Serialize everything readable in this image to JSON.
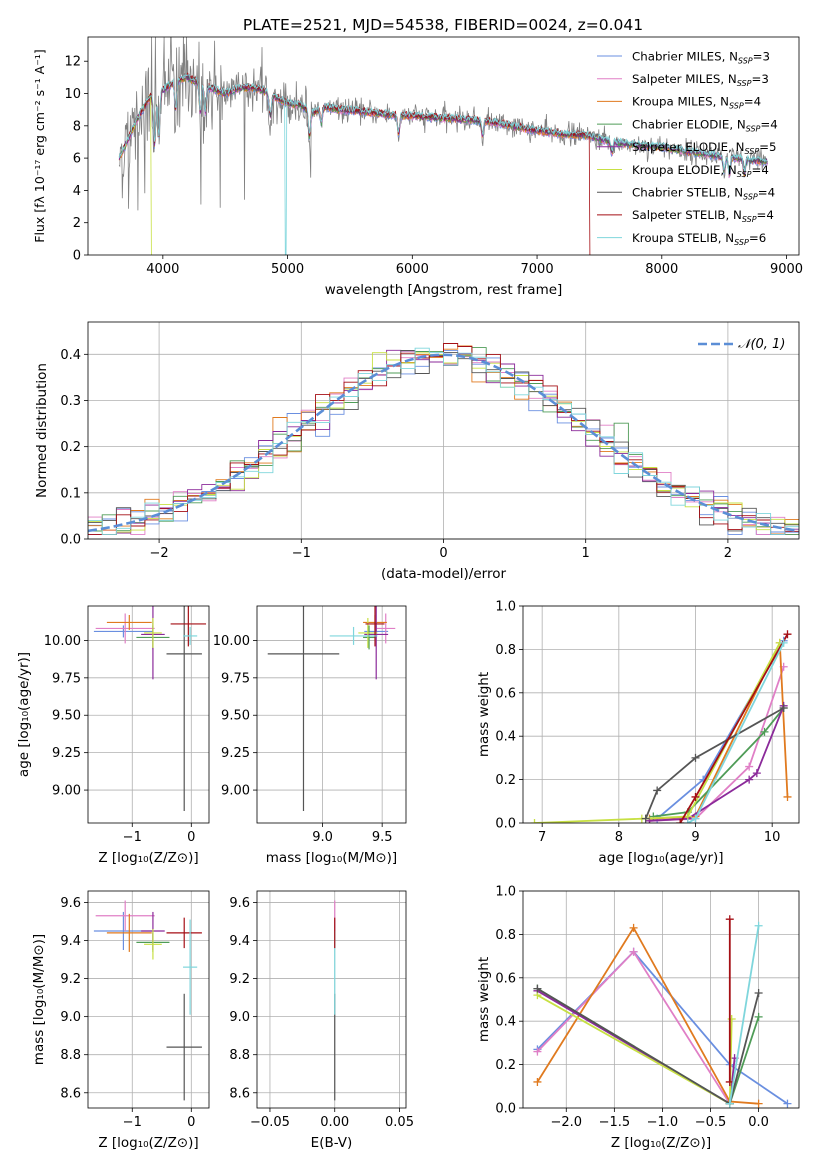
{
  "figure": {
    "title": "PLATE=2521, MJD=54538, FIBERID=0024, z=0.041"
  },
  "colors": {
    "chabrier_miles": "#6a8fe0",
    "salpeter_miles": "#e07fc6",
    "kroupa_miles": "#e07a1f",
    "chabrier_elodie": "#4f9c57",
    "salpeter_elodie": "#8b2a9a",
    "kroupa_elodie": "#c7e043",
    "chabrier_stelib": "#555555",
    "salpeter_stelib": "#a50f15",
    "kroupa_stelib": "#7fd6dc",
    "data": "#808080",
    "normal": "#5b8ed6"
  },
  "chart_data": [
    {
      "id": "spectrum",
      "type": "line",
      "xlabel": "wavelength [Angstrom, rest frame]",
      "ylabel": "Flux [fλ 10⁻¹⁷ erg cm⁻² s⁻¹ A⁻¹]",
      "xlim": [
        3400,
        9100
      ],
      "ylim": [
        0,
        13.5
      ],
      "xticks": [
        4000,
        5000,
        6000,
        7000,
        8000,
        9000
      ],
      "yticks": [
        0,
        2,
        4,
        6,
        8,
        10,
        12
      ],
      "legend_position": "top-right",
      "legend": [
        {
          "key": "chabrier_miles",
          "label": "Chabrier MILES, N",
          "sub": "SSP",
          "eq": "=3"
        },
        {
          "key": "salpeter_miles",
          "label": "Salpeter MILES, N",
          "sub": "SSP",
          "eq": "=3"
        },
        {
          "key": "kroupa_miles",
          "label": "Kroupa MILES, N",
          "sub": "SSP",
          "eq": "=4"
        },
        {
          "key": "chabrier_elodie",
          "label": "Chabrier ELODIE, N",
          "sub": "SSP",
          "eq": "=4"
        },
        {
          "key": "salpeter_elodie",
          "label": "Salpeter ELODIE, N",
          "sub": "SSP",
          "eq": "=5"
        },
        {
          "key": "kroupa_elodie",
          "label": "Kroupa ELODIE, N",
          "sub": "SSP",
          "eq": "=4"
        },
        {
          "key": "chabrier_stelib",
          "label": "Chabrier STELIB, N",
          "sub": "SSP",
          "eq": "=4"
        },
        {
          "key": "salpeter_stelib",
          "label": "Salpeter STELIB, N",
          "sub": "SSP",
          "eq": "=4"
        },
        {
          "key": "kroupa_stelib",
          "label": "Kroupa STELIB, N",
          "sub": "SSP",
          "eq": "=6"
        }
      ],
      "continuum": [
        [
          3650,
          6.0
        ],
        [
          3700,
          6.8
        ],
        [
          3800,
          8.5
        ],
        [
          3900,
          9.8
        ],
        [
          4000,
          10.2
        ],
        [
          4100,
          10.8
        ],
        [
          4200,
          11.0
        ],
        [
          4300,
          10.6
        ],
        [
          4400,
          10.3
        ],
        [
          4500,
          10.0
        ],
        [
          4600,
          10.3
        ],
        [
          4700,
          10.4
        ],
        [
          4800,
          10.2
        ],
        [
          4900,
          9.8
        ],
        [
          5000,
          9.4
        ],
        [
          5100,
          9.3
        ],
        [
          5200,
          8.8
        ],
        [
          5300,
          9.2
        ],
        [
          5400,
          9.0
        ],
        [
          5600,
          8.9
        ],
        [
          5800,
          8.7
        ],
        [
          6000,
          8.6
        ],
        [
          6200,
          8.5
        ],
        [
          6400,
          8.4
        ],
        [
          6600,
          8.3
        ],
        [
          6800,
          8.0
        ],
        [
          7000,
          7.7
        ],
        [
          7200,
          7.5
        ],
        [
          7400,
          7.4
        ],
        [
          7600,
          7.0
        ],
        [
          7800,
          6.8
        ],
        [
          8000,
          6.7
        ],
        [
          8200,
          6.4
        ],
        [
          8400,
          6.2
        ],
        [
          8600,
          6.0
        ],
        [
          8800,
          5.8
        ],
        [
          8850,
          5.8
        ]
      ],
      "dropouts": [
        {
          "key": "kroupa_elodie",
          "x": 3905,
          "note": "model ends"
        },
        {
          "key": "kroupa_stelib",
          "x": 4985,
          "note": "gap"
        },
        {
          "key": "kroupa_elodie",
          "x": 6790,
          "note": "gap"
        },
        {
          "key": "salpeter_stelib",
          "x": 7420,
          "note": "model ends"
        },
        {
          "key": "kroupa_elodie",
          "x": 8030,
          "note": "gap"
        }
      ]
    },
    {
      "id": "residuals",
      "type": "area",
      "xlabel": "(data-model)/error",
      "ylabel": "Normed distribution",
      "xlim": [
        -2.5,
        2.5
      ],
      "ylim": [
        0,
        0.47
      ],
      "xticks": [
        -2,
        -1,
        0,
        1,
        2
      ],
      "yticks": [
        0.0,
        0.1,
        0.2,
        0.3,
        0.4
      ],
      "bin_width": 0.1,
      "grid": true,
      "legend_position": "top-right",
      "legend": [
        {
          "key": "normal",
          "label": "𝒩(0, 1)"
        }
      ]
    },
    {
      "id": "z_age",
      "type": "scatter",
      "xlabel": "Z [log₁₀(Z/Z⊙)]",
      "ylabel": "age  [log₁₀(age/yr)]",
      "xlim": [
        -1.75,
        0.3
      ],
      "ylim": [
        8.78,
        10.23
      ],
      "xticks": [
        -1,
        0
      ],
      "yticks": [
        9.0,
        9.25,
        9.5,
        9.75,
        10.0
      ],
      "grid": true,
      "points": [
        {
          "key": "chabrier_miles",
          "x": -1.15,
          "y": 10.06,
          "xerr": 0.5,
          "yerr": 0.04
        },
        {
          "key": "salpeter_miles",
          "x": -1.12,
          "y": 10.08,
          "xerr": 0.5,
          "yerr": 0.1
        },
        {
          "key": "kroupa_miles",
          "x": -1.05,
          "y": 10.12,
          "xerr": 0.38,
          "yerr": 0.05
        },
        {
          "key": "chabrier_elodie",
          "x": -0.65,
          "y": 10.02,
          "xerr": 0.28,
          "yerr": 0.08
        },
        {
          "key": "salpeter_elodie",
          "x": -0.65,
          "y": 10.04,
          "xerr": 0.2,
          "yerr": 0.3
        },
        {
          "key": "kroupa_elodie",
          "x": -0.65,
          "y": 10.05,
          "xerr": 0.15,
          "yerr": 0.1
        },
        {
          "key": "chabrier_stelib",
          "x": -0.12,
          "y": 9.91,
          "xerr": 0.3,
          "yerr": 1.05
        },
        {
          "key": "salpeter_stelib",
          "x": -0.05,
          "y": 10.11,
          "xerr": 0.3,
          "yerr": 0.15
        },
        {
          "key": "kroupa_stelib",
          "x": -0.02,
          "y": 10.03,
          "xerr": 0.12,
          "yerr": 0.06
        }
      ]
    },
    {
      "id": "mass_age",
      "type": "scatter",
      "xlabel": "mass [log₁₀(M/M⊙)]",
      "xlim": [
        8.45,
        9.7
      ],
      "ylim": [
        8.78,
        10.23
      ],
      "xticks": [
        9.0,
        9.5
      ],
      "yticks": [
        9.0,
        9.25,
        9.5,
        9.75,
        10.0
      ],
      "grid": true,
      "points": [
        {
          "key": "chabrier_miles",
          "x": 9.45,
          "y": 10.06,
          "xerr": 0.1,
          "yerr": 0.04
        },
        {
          "key": "salpeter_miles",
          "x": 9.53,
          "y": 10.08,
          "xerr": 0.08,
          "yerr": 0.1
        },
        {
          "key": "kroupa_miles",
          "x": 9.44,
          "y": 10.12,
          "xerr": 0.1,
          "yerr": 0.05
        },
        {
          "key": "chabrier_elodie",
          "x": 9.39,
          "y": 10.02,
          "xerr": 0.05,
          "yerr": 0.08
        },
        {
          "key": "salpeter_elodie",
          "x": 9.45,
          "y": 10.04,
          "xerr": 0.1,
          "yerr": 0.3
        },
        {
          "key": "kroupa_elodie",
          "x": 9.38,
          "y": 10.05,
          "xerr": 0.08,
          "yerr": 0.1
        },
        {
          "key": "chabrier_stelib",
          "x": 8.84,
          "y": 9.91,
          "xerr": 0.3,
          "yerr": 1.05
        },
        {
          "key": "salpeter_stelib",
          "x": 9.44,
          "y": 10.11,
          "xerr": 0.08,
          "yerr": 0.15
        },
        {
          "key": "kroupa_stelib",
          "x": 9.26,
          "y": 10.03,
          "xerr": 0.2,
          "yerr": 0.06
        }
      ]
    },
    {
      "id": "age_weight",
      "type": "line",
      "xlabel": "age  [log₁₀(age/yr)]",
      "ylabel": "mass weight",
      "xlim": [
        6.75,
        10.35
      ],
      "ylim": [
        0,
        1.0
      ],
      "xticks": [
        7,
        8,
        9,
        10
      ],
      "yticks": [
        0.0,
        0.2,
        0.4,
        0.6,
        0.8,
        1.0
      ],
      "grid": true,
      "series": [
        {
          "key": "chabrier_miles",
          "x": [
            8.5,
            9.1,
            10.15
          ],
          "y": [
            0.02,
            0.2,
            0.84
          ]
        },
        {
          "key": "salpeter_miles",
          "x": [
            8.4,
            9.0,
            9.7,
            10.15
          ],
          "y": [
            0.01,
            0.02,
            0.26,
            0.72
          ]
        },
        {
          "key": "kroupa_miles",
          "x": [
            8.4,
            9.0,
            10.1,
            10.2
          ],
          "y": [
            0.02,
            0.03,
            0.83,
            0.12
          ]
        },
        {
          "key": "chabrier_elodie",
          "x": [
            8.45,
            8.9,
            9.9,
            10.15
          ],
          "y": [
            0.03,
            0.05,
            0.42,
            0.53
          ]
        },
        {
          "key": "salpeter_elodie",
          "x": [
            8.4,
            8.9,
            9.7,
            9.8,
            10.15
          ],
          "y": [
            0.01,
            0.02,
            0.2,
            0.23,
            0.54
          ]
        },
        {
          "key": "kroupa_elodie",
          "x": [
            6.9,
            8.3,
            8.9,
            10.1
          ],
          "y": [
            0.0,
            0.02,
            0.03,
            0.83
          ]
        },
        {
          "key": "chabrier_stelib",
          "x": [
            8.35,
            8.5,
            9.0,
            10.15
          ],
          "y": [
            0.02,
            0.15,
            0.3,
            0.53
          ]
        },
        {
          "key": "salpeter_stelib",
          "x": [
            8.8,
            9.0,
            10.2
          ],
          "y": [
            0.0,
            0.12,
            0.87
          ]
        },
        {
          "key": "kroupa_stelib",
          "x": [
            8.9,
            9.0,
            10.15
          ],
          "y": [
            0.0,
            0.02,
            0.83
          ]
        }
      ]
    },
    {
      "id": "z_mass",
      "type": "scatter",
      "xlabel": "Z [log₁₀(Z/Z⊙)]",
      "ylabel": "mass [log₁₀(M/M⊙)]",
      "xlim": [
        -1.75,
        0.3
      ],
      "ylim": [
        8.52,
        9.66
      ],
      "xticks": [
        -1,
        0
      ],
      "yticks": [
        8.6,
        8.8,
        9.0,
        9.2,
        9.4,
        9.6
      ],
      "grid": true,
      "points": [
        {
          "key": "chabrier_miles",
          "x": -1.15,
          "y": 9.45,
          "xerr": 0.5,
          "yerr": 0.1
        },
        {
          "key": "salpeter_miles",
          "x": -1.12,
          "y": 9.53,
          "xerr": 0.5,
          "yerr": 0.08
        },
        {
          "key": "kroupa_miles",
          "x": -1.05,
          "y": 9.44,
          "xerr": 0.38,
          "yerr": 0.1
        },
        {
          "key": "chabrier_elodie",
          "x": -0.65,
          "y": 9.39,
          "xerr": 0.28,
          "yerr": 0.05
        },
        {
          "key": "salpeter_elodie",
          "x": -0.65,
          "y": 9.45,
          "xerr": 0.2,
          "yerr": 0.1
        },
        {
          "key": "kroupa_elodie",
          "x": -0.65,
          "y": 9.38,
          "xerr": 0.15,
          "yerr": 0.08
        },
        {
          "key": "chabrier_stelib",
          "x": -0.12,
          "y": 8.84,
          "xerr": 0.3,
          "yerr": 0.28
        },
        {
          "key": "salpeter_stelib",
          "x": -0.12,
          "y": 9.44,
          "xerr": 0.3,
          "yerr": 0.08
        },
        {
          "key": "kroupa_stelib",
          "x": -0.02,
          "y": 9.26,
          "xerr": 0.12,
          "yerr": 0.25
        }
      ]
    },
    {
      "id": "ebv_mass",
      "type": "scatter",
      "xlabel": "E(B-V)",
      "xlim": [
        -0.06,
        0.055
      ],
      "ylim": [
        8.52,
        9.66
      ],
      "xticks": [
        -0.05,
        0.0,
        0.05
      ],
      "yticks": [
        8.6,
        8.8,
        9.0,
        9.2,
        9.4,
        9.6
      ],
      "grid": true,
      "points": [
        {
          "key": "chabrier_stelib",
          "x": 0.0,
          "y": 8.84,
          "xerr": 0.0,
          "yerr": 0.28
        },
        {
          "key": "kroupa_stelib",
          "x": 0.0,
          "y": 9.26,
          "xerr": 0.0,
          "yerr": 0.25
        },
        {
          "key": "salpeter_miles",
          "x": 0.0,
          "y": 9.53,
          "xerr": 0.0,
          "yerr": 0.08
        },
        {
          "key": "salpeter_stelib",
          "x": 0.0,
          "y": 9.44,
          "xerr": 0.0,
          "yerr": 0.08
        }
      ]
    },
    {
      "id": "z_weight",
      "type": "line",
      "xlabel": "Z [log₁₀(Z/Z⊙)]",
      "ylabel": "mass weight",
      "xlim": [
        -2.45,
        0.42
      ],
      "ylim": [
        0,
        1.0
      ],
      "xticks": [
        -2.0,
        -1.5,
        -1.0,
        -0.5,
        0.0
      ],
      "yticks": [
        0.0,
        0.2,
        0.4,
        0.6,
        0.8,
        1.0
      ],
      "grid": true,
      "series": [
        {
          "key": "chabrier_miles",
          "x": [
            -2.3,
            -1.3,
            -0.3,
            0.3
          ],
          "y": [
            0.27,
            0.72,
            0.2,
            0.02
          ]
        },
        {
          "key": "salpeter_miles",
          "x": [
            -2.3,
            -1.3,
            -0.3
          ],
          "y": [
            0.26,
            0.72,
            0.02
          ]
        },
        {
          "key": "kroupa_miles",
          "x": [
            -2.3,
            -1.3,
            -0.3,
            0.0
          ],
          "y": [
            0.12,
            0.83,
            0.03,
            0.02
          ]
        },
        {
          "key": "chabrier_elodie",
          "x": [
            -2.3,
            -0.3,
            0.0
          ],
          "y": [
            0.55,
            0.02,
            0.42
          ]
        },
        {
          "key": "salpeter_elodie",
          "x": [
            -2.3,
            -0.3,
            -0.25
          ],
          "y": [
            0.54,
            0.02,
            0.23
          ]
        },
        {
          "key": "kroupa_elodie",
          "x": [
            -2.3,
            -0.3,
            -0.28
          ],
          "y": [
            0.52,
            0.02,
            0.41
          ]
        },
        {
          "key": "chabrier_stelib",
          "x": [
            -2.3,
            -0.3,
            0.0
          ],
          "y": [
            0.55,
            0.02,
            0.53
          ]
        },
        {
          "key": "salpeter_stelib",
          "x": [
            -0.3,
            -0.3
          ],
          "y": [
            0.87,
            0.12
          ]
        },
        {
          "key": "kroupa_stelib",
          "x": [
            -0.3,
            0.0
          ],
          "y": [
            0.02,
            0.84
          ]
        }
      ]
    }
  ]
}
